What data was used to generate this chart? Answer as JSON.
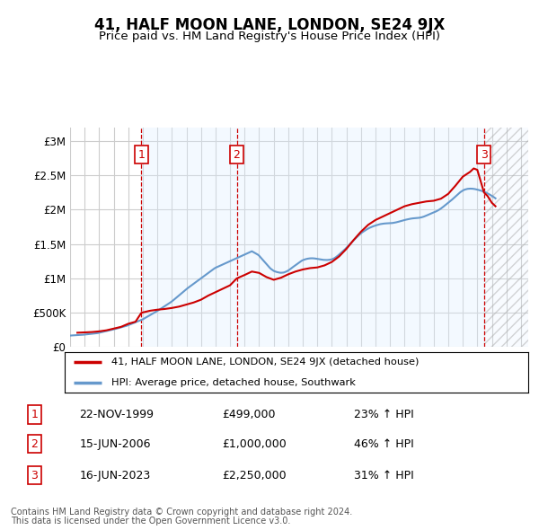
{
  "title": "41, HALF MOON LANE, LONDON, SE24 9JX",
  "subtitle": "Price paid vs. HM Land Registry's House Price Index (HPI)",
  "ylabel_ticks": [
    "£0",
    "£500K",
    "£1M",
    "£1.5M",
    "£2M",
    "£2.5M",
    "£3M"
  ],
  "ytick_values": [
    0,
    500000,
    1000000,
    1500000,
    2000000,
    2500000,
    3000000
  ],
  "ylim": [
    0,
    3200000
  ],
  "xlim_start": 1995.0,
  "xlim_end": 2026.5,
  "transactions": [
    {
      "label": "1",
      "date": "22-NOV-1999",
      "price": "£499,000",
      "x": 1999.9,
      "pct": "23% ↑ HPI"
    },
    {
      "label": "2",
      "date": "15-JUN-2006",
      "price": "£1,000,000",
      "x": 2006.46,
      "pct": "46% ↑ HPI"
    },
    {
      "label": "3",
      "date": "16-JUN-2023",
      "price": "£2,250,000",
      "x": 2023.46,
      "pct": "31% ↑ HPI"
    }
  ],
  "legend_property_label": "41, HALF MOON LANE, LONDON, SE24 9JX (detached house)",
  "legend_hpi_label": "HPI: Average price, detached house, Southwark",
  "footer1": "Contains HM Land Registry data © Crown copyright and database right 2024.",
  "footer2": "This data is licensed under the Open Government Licence v3.0.",
  "property_line_color": "#cc0000",
  "hpi_line_color": "#6699cc",
  "vline_color": "#cc0000",
  "bg_shade_color": "#ddeeff",
  "grid_color": "#cccccc",
  "box_color": "#cc0000",
  "hpi_data": [
    [
      1995.0,
      168000
    ],
    [
      1995.083,
      170000
    ],
    [
      1995.167,
      171000
    ],
    [
      1995.25,
      172000
    ],
    [
      1995.333,
      173000
    ],
    [
      1995.417,
      174000
    ],
    [
      1995.5,
      175000
    ],
    [
      1995.583,
      176000
    ],
    [
      1995.667,
      177000
    ],
    [
      1995.75,
      178000
    ],
    [
      1995.833,
      179000
    ],
    [
      1995.917,
      181000
    ],
    [
      1996.0,
      183000
    ],
    [
      1996.083,
      185000
    ],
    [
      1996.167,
      187000
    ],
    [
      1996.25,
      189000
    ],
    [
      1996.333,
      191000
    ],
    [
      1996.417,
      193000
    ],
    [
      1996.5,
      195000
    ],
    [
      1996.583,
      197000
    ],
    [
      1996.667,
      199000
    ],
    [
      1996.75,
      201000
    ],
    [
      1996.833,
      203000
    ],
    [
      1996.917,
      205000
    ],
    [
      1997.0,
      210000
    ],
    [
      1997.083,
      214000
    ],
    [
      1997.167,
      218000
    ],
    [
      1997.25,
      222000
    ],
    [
      1997.333,
      226000
    ],
    [
      1997.417,
      230000
    ],
    [
      1997.5,
      234000
    ],
    [
      1997.583,
      238000
    ],
    [
      1997.667,
      242000
    ],
    [
      1997.75,
      246000
    ],
    [
      1997.833,
      250000
    ],
    [
      1997.917,
      255000
    ],
    [
      1998.0,
      260000
    ],
    [
      1998.083,
      264000
    ],
    [
      1998.167,
      268000
    ],
    [
      1998.25,
      273000
    ],
    [
      1998.333,
      278000
    ],
    [
      1998.417,
      283000
    ],
    [
      1998.5,
      288000
    ],
    [
      1998.583,
      293000
    ],
    [
      1998.667,
      298000
    ],
    [
      1998.75,
      303000
    ],
    [
      1998.833,
      308000
    ],
    [
      1998.917,
      313000
    ],
    [
      1999.0,
      320000
    ],
    [
      1999.083,
      327000
    ],
    [
      1999.167,
      333000
    ],
    [
      1999.25,
      340000
    ],
    [
      1999.333,
      347000
    ],
    [
      1999.417,
      354000
    ],
    [
      1999.5,
      361000
    ],
    [
      1999.583,
      368000
    ],
    [
      1999.667,
      375000
    ],
    [
      1999.75,
      382000
    ],
    [
      1999.833,
      389000
    ],
    [
      1999.917,
      396000
    ],
    [
      2000.0,
      405000
    ],
    [
      2000.083,
      415000
    ],
    [
      2000.167,
      425000
    ],
    [
      2000.25,
      435000
    ],
    [
      2000.333,
      445000
    ],
    [
      2000.417,
      455000
    ],
    [
      2000.5,
      465000
    ],
    [
      2000.583,
      475000
    ],
    [
      2000.667,
      485000
    ],
    [
      2000.75,
      495000
    ],
    [
      2000.833,
      505000
    ],
    [
      2000.917,
      516000
    ],
    [
      2001.0,
      527000
    ],
    [
      2001.083,
      538000
    ],
    [
      2001.167,
      549000
    ],
    [
      2001.25,
      561000
    ],
    [
      2001.333,
      572000
    ],
    [
      2001.417,
      584000
    ],
    [
      2001.5,
      595000
    ],
    [
      2001.583,
      607000
    ],
    [
      2001.667,
      618000
    ],
    [
      2001.75,
      630000
    ],
    [
      2001.833,
      641000
    ],
    [
      2001.917,
      653000
    ],
    [
      2002.0,
      666000
    ],
    [
      2002.083,
      680000
    ],
    [
      2002.167,
      695000
    ],
    [
      2002.25,
      710000
    ],
    [
      2002.333,
      725000
    ],
    [
      2002.417,
      740000
    ],
    [
      2002.5,
      755000
    ],
    [
      2002.583,
      770000
    ],
    [
      2002.667,
      785000
    ],
    [
      2002.75,
      800000
    ],
    [
      2002.833,
      815000
    ],
    [
      2002.917,
      830000
    ],
    [
      2003.0,
      845000
    ],
    [
      2003.083,
      858000
    ],
    [
      2003.167,
      871000
    ],
    [
      2003.25,
      884000
    ],
    [
      2003.333,
      897000
    ],
    [
      2003.417,
      910000
    ],
    [
      2003.5,
      923000
    ],
    [
      2003.583,
      936000
    ],
    [
      2003.667,
      949000
    ],
    [
      2003.75,
      962000
    ],
    [
      2003.833,
      975000
    ],
    [
      2003.917,
      988000
    ],
    [
      2004.0,
      1001000
    ],
    [
      2004.083,
      1014000
    ],
    [
      2004.167,
      1027000
    ],
    [
      2004.25,
      1040000
    ],
    [
      2004.333,
      1053000
    ],
    [
      2004.417,
      1066000
    ],
    [
      2004.5,
      1079000
    ],
    [
      2004.583,
      1092000
    ],
    [
      2004.667,
      1105000
    ],
    [
      2004.75,
      1118000
    ],
    [
      2004.833,
      1131000
    ],
    [
      2004.917,
      1144000
    ],
    [
      2005.0,
      1155000
    ],
    [
      2005.083,
      1163000
    ],
    [
      2005.167,
      1171000
    ],
    [
      2005.25,
      1179000
    ],
    [
      2005.333,
      1187000
    ],
    [
      2005.417,
      1195000
    ],
    [
      2005.5,
      1203000
    ],
    [
      2005.583,
      1211000
    ],
    [
      2005.667,
      1219000
    ],
    [
      2005.75,
      1227000
    ],
    [
      2005.833,
      1235000
    ],
    [
      2005.917,
      1243000
    ],
    [
      2006.0,
      1251000
    ],
    [
      2006.083,
      1259000
    ],
    [
      2006.167,
      1267000
    ],
    [
      2006.25,
      1275000
    ],
    [
      2006.333,
      1283000
    ],
    [
      2006.417,
      1291000
    ],
    [
      2006.5,
      1299000
    ],
    [
      2006.583,
      1307000
    ],
    [
      2006.667,
      1315000
    ],
    [
      2006.75,
      1323000
    ],
    [
      2006.833,
      1331000
    ],
    [
      2006.917,
      1339000
    ],
    [
      2007.0,
      1347000
    ],
    [
      2007.083,
      1355000
    ],
    [
      2007.167,
      1363000
    ],
    [
      2007.25,
      1371000
    ],
    [
      2007.333,
      1379000
    ],
    [
      2007.417,
      1387000
    ],
    [
      2007.5,
      1395000
    ],
    [
      2007.583,
      1385000
    ],
    [
      2007.667,
      1375000
    ],
    [
      2007.75,
      1365000
    ],
    [
      2007.833,
      1355000
    ],
    [
      2007.917,
      1345000
    ],
    [
      2008.0,
      1330000
    ],
    [
      2008.083,
      1310000
    ],
    [
      2008.167,
      1290000
    ],
    [
      2008.25,
      1270000
    ],
    [
      2008.333,
      1250000
    ],
    [
      2008.417,
      1230000
    ],
    [
      2008.5,
      1210000
    ],
    [
      2008.583,
      1190000
    ],
    [
      2008.667,
      1170000
    ],
    [
      2008.75,
      1150000
    ],
    [
      2008.833,
      1135000
    ],
    [
      2008.917,
      1122000
    ],
    [
      2009.0,
      1110000
    ],
    [
      2009.083,
      1102000
    ],
    [
      2009.167,
      1096000
    ],
    [
      2009.25,
      1091000
    ],
    [
      2009.333,
      1087000
    ],
    [
      2009.417,
      1084000
    ],
    [
      2009.5,
      1082000
    ],
    [
      2009.583,
      1083000
    ],
    [
      2009.667,
      1085000
    ],
    [
      2009.75,
      1090000
    ],
    [
      2009.833,
      1097000
    ],
    [
      2009.917,
      1105000
    ],
    [
      2010.0,
      1115000
    ],
    [
      2010.083,
      1127000
    ],
    [
      2010.167,
      1140000
    ],
    [
      2010.25,
      1154000
    ],
    [
      2010.333,
      1167000
    ],
    [
      2010.417,
      1180000
    ],
    [
      2010.5,
      1193000
    ],
    [
      2010.583,
      1206000
    ],
    [
      2010.667,
      1219000
    ],
    [
      2010.75,
      1232000
    ],
    [
      2010.833,
      1245000
    ],
    [
      2010.917,
      1256000
    ],
    [
      2011.0,
      1265000
    ],
    [
      2011.083,
      1272000
    ],
    [
      2011.167,
      1278000
    ],
    [
      2011.25,
      1283000
    ],
    [
      2011.333,
      1287000
    ],
    [
      2011.417,
      1290000
    ],
    [
      2011.5,
      1292000
    ],
    [
      2011.583,
      1293000
    ],
    [
      2011.667,
      1293000
    ],
    [
      2011.75,
      1292000
    ],
    [
      2011.833,
      1290000
    ],
    [
      2011.917,
      1287000
    ],
    [
      2012.0,
      1283000
    ],
    [
      2012.083,
      1280000
    ],
    [
      2012.167,
      1277000
    ],
    [
      2012.25,
      1274000
    ],
    [
      2012.333,
      1272000
    ],
    [
      2012.417,
      1270000
    ],
    [
      2012.5,
      1269000
    ],
    [
      2012.583,
      1268000
    ],
    [
      2012.667,
      1268000
    ],
    [
      2012.75,
      1269000
    ],
    [
      2012.833,
      1271000
    ],
    [
      2012.917,
      1274000
    ],
    [
      2013.0,
      1278000
    ],
    [
      2013.083,
      1285000
    ],
    [
      2013.167,
      1294000
    ],
    [
      2013.25,
      1305000
    ],
    [
      2013.333,
      1318000
    ],
    [
      2013.417,
      1332000
    ],
    [
      2013.5,
      1347000
    ],
    [
      2013.583,
      1362000
    ],
    [
      2013.667,
      1378000
    ],
    [
      2013.75,
      1394000
    ],
    [
      2013.833,
      1410000
    ],
    [
      2013.917,
      1427000
    ],
    [
      2014.0,
      1445000
    ],
    [
      2014.083,
      1463000
    ],
    [
      2014.167,
      1482000
    ],
    [
      2014.25,
      1500000
    ],
    [
      2014.333,
      1519000
    ],
    [
      2014.417,
      1537000
    ],
    [
      2014.5,
      1556000
    ],
    [
      2014.583,
      1573000
    ],
    [
      2014.667,
      1591000
    ],
    [
      2014.75,
      1608000
    ],
    [
      2014.833,
      1625000
    ],
    [
      2014.917,
      1641000
    ],
    [
      2015.0,
      1656000
    ],
    [
      2015.083,
      1670000
    ],
    [
      2015.167,
      1682000
    ],
    [
      2015.25,
      1694000
    ],
    [
      2015.333,
      1705000
    ],
    [
      2015.417,
      1716000
    ],
    [
      2015.5,
      1726000
    ],
    [
      2015.583,
      1735000
    ],
    [
      2015.667,
      1743000
    ],
    [
      2015.75,
      1751000
    ],
    [
      2015.833,
      1758000
    ],
    [
      2015.917,
      1764000
    ],
    [
      2016.0,
      1770000
    ],
    [
      2016.083,
      1775000
    ],
    [
      2016.167,
      1780000
    ],
    [
      2016.25,
      1785000
    ],
    [
      2016.333,
      1790000
    ],
    [
      2016.417,
      1793000
    ],
    [
      2016.5,
      1796000
    ],
    [
      2016.583,
      1798000
    ],
    [
      2016.667,
      1800000
    ],
    [
      2016.75,
      1801000
    ],
    [
      2016.833,
      1802000
    ],
    [
      2016.917,
      1802000
    ],
    [
      2017.0,
      1803000
    ],
    [
      2017.083,
      1804000
    ],
    [
      2017.167,
      1806000
    ],
    [
      2017.25,
      1809000
    ],
    [
      2017.333,
      1812000
    ],
    [
      2017.417,
      1816000
    ],
    [
      2017.5,
      1820000
    ],
    [
      2017.583,
      1825000
    ],
    [
      2017.667,
      1830000
    ],
    [
      2017.75,
      1835000
    ],
    [
      2017.833,
      1840000
    ],
    [
      2017.917,
      1845000
    ],
    [
      2018.0,
      1850000
    ],
    [
      2018.083,
      1854000
    ],
    [
      2018.167,
      1858000
    ],
    [
      2018.25,
      1862000
    ],
    [
      2018.333,
      1866000
    ],
    [
      2018.417,
      1869000
    ],
    [
      2018.5,
      1872000
    ],
    [
      2018.583,
      1874000
    ],
    [
      2018.667,
      1876000
    ],
    [
      2018.75,
      1878000
    ],
    [
      2018.833,
      1879000
    ],
    [
      2018.917,
      1880000
    ],
    [
      2019.0,
      1882000
    ],
    [
      2019.083,
      1885000
    ],
    [
      2019.167,
      1889000
    ],
    [
      2019.25,
      1894000
    ],
    [
      2019.333,
      1900000
    ],
    [
      2019.417,
      1907000
    ],
    [
      2019.5,
      1914000
    ],
    [
      2019.583,
      1922000
    ],
    [
      2019.667,
      1930000
    ],
    [
      2019.75,
      1938000
    ],
    [
      2019.833,
      1946000
    ],
    [
      2019.917,
      1953000
    ],
    [
      2020.0,
      1960000
    ],
    [
      2020.083,
      1967000
    ],
    [
      2020.167,
      1975000
    ],
    [
      2020.25,
      1984000
    ],
    [
      2020.333,
      1994000
    ],
    [
      2020.417,
      2005000
    ],
    [
      2020.5,
      2017000
    ],
    [
      2020.583,
      2030000
    ],
    [
      2020.667,
      2044000
    ],
    [
      2020.75,
      2058000
    ],
    [
      2020.833,
      2072000
    ],
    [
      2020.917,
      2085000
    ],
    [
      2021.0,
      2099000
    ],
    [
      2021.083,
      2113000
    ],
    [
      2021.167,
      2128000
    ],
    [
      2021.25,
      2144000
    ],
    [
      2021.333,
      2160000
    ],
    [
      2021.417,
      2177000
    ],
    [
      2021.5,
      2194000
    ],
    [
      2021.583,
      2210000
    ],
    [
      2021.667,
      2226000
    ],
    [
      2021.75,
      2241000
    ],
    [
      2021.833,
      2255000
    ],
    [
      2021.917,
      2267000
    ],
    [
      2022.0,
      2278000
    ],
    [
      2022.083,
      2287000
    ],
    [
      2022.167,
      2294000
    ],
    [
      2022.25,
      2299000
    ],
    [
      2022.333,
      2303000
    ],
    [
      2022.417,
      2305000
    ],
    [
      2022.5,
      2306000
    ],
    [
      2022.583,
      2306000
    ],
    [
      2022.667,
      2305000
    ],
    [
      2022.75,
      2303000
    ],
    [
      2022.833,
      2300000
    ],
    [
      2022.917,
      2296000
    ],
    [
      2023.0,
      2292000
    ],
    [
      2023.083,
      2287000
    ],
    [
      2023.167,
      2282000
    ],
    [
      2023.25,
      2277000
    ],
    [
      2023.333,
      2271000
    ],
    [
      2023.417,
      2265000
    ],
    [
      2023.5,
      2258000
    ],
    [
      2023.583,
      2250000
    ],
    [
      2023.667,
      2241000
    ],
    [
      2023.75,
      2232000
    ],
    [
      2023.833,
      2222000
    ],
    [
      2023.917,
      2212000
    ],
    [
      2024.0,
      2201000
    ],
    [
      2024.083,
      2190000
    ],
    [
      2024.167,
      2178000
    ],
    [
      2024.25,
      2165000
    ]
  ],
  "property_data": [
    [
      1995.5,
      210000
    ],
    [
      1996.0,
      215000
    ],
    [
      1996.5,
      220000
    ],
    [
      1997.0,
      230000
    ],
    [
      1997.5,
      245000
    ],
    [
      1998.0,
      270000
    ],
    [
      1998.5,
      295000
    ],
    [
      1999.0,
      340000
    ],
    [
      1999.5,
      370000
    ],
    [
      1999.9,
      499000
    ],
    [
      2000.0,
      505000
    ],
    [
      2000.5,
      530000
    ],
    [
      2001.0,
      545000
    ],
    [
      2001.5,
      555000
    ],
    [
      2002.0,
      570000
    ],
    [
      2002.5,
      590000
    ],
    [
      2003.0,
      620000
    ],
    [
      2003.5,
      650000
    ],
    [
      2004.0,
      690000
    ],
    [
      2004.5,
      750000
    ],
    [
      2005.0,
      800000
    ],
    [
      2005.5,
      850000
    ],
    [
      2006.0,
      900000
    ],
    [
      2006.46,
      1000000
    ],
    [
      2007.0,
      1050000
    ],
    [
      2007.5,
      1100000
    ],
    [
      2008.0,
      1080000
    ],
    [
      2008.5,
      1020000
    ],
    [
      2009.0,
      980000
    ],
    [
      2009.5,
      1010000
    ],
    [
      2010.0,
      1060000
    ],
    [
      2010.5,
      1100000
    ],
    [
      2011.0,
      1130000
    ],
    [
      2011.5,
      1150000
    ],
    [
      2012.0,
      1160000
    ],
    [
      2012.5,
      1190000
    ],
    [
      2013.0,
      1240000
    ],
    [
      2013.5,
      1320000
    ],
    [
      2014.0,
      1430000
    ],
    [
      2014.5,
      1560000
    ],
    [
      2015.0,
      1680000
    ],
    [
      2015.5,
      1780000
    ],
    [
      2016.0,
      1850000
    ],
    [
      2016.5,
      1900000
    ],
    [
      2017.0,
      1950000
    ],
    [
      2017.5,
      2000000
    ],
    [
      2018.0,
      2050000
    ],
    [
      2018.5,
      2080000
    ],
    [
      2019.0,
      2100000
    ],
    [
      2019.5,
      2120000
    ],
    [
      2020.0,
      2130000
    ],
    [
      2020.5,
      2160000
    ],
    [
      2021.0,
      2230000
    ],
    [
      2021.5,
      2350000
    ],
    [
      2022.0,
      2480000
    ],
    [
      2022.5,
      2550000
    ],
    [
      2022.75,
      2600000
    ],
    [
      2023.0,
      2580000
    ],
    [
      2023.46,
      2250000
    ],
    [
      2023.7,
      2200000
    ],
    [
      2024.0,
      2100000
    ],
    [
      2024.25,
      2050000
    ]
  ]
}
